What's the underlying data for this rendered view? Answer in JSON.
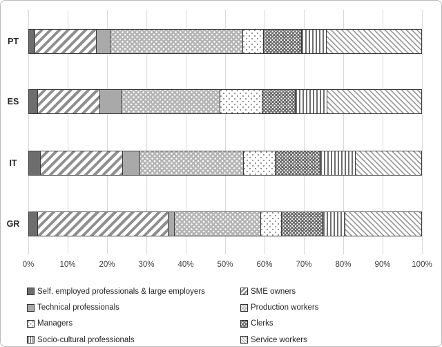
{
  "chart_data": {
    "type": "bar",
    "subtype": "horizontal-stacked-100pct",
    "title": "",
    "xlabel": "",
    "ylabel": "",
    "xlim": [
      0,
      100
    ],
    "grid": "vertical",
    "legend_position": "bottom",
    "legend_columns": 2,
    "categories": [
      "PT",
      "ES",
      "IT",
      "GR"
    ],
    "x_ticks": [
      "0%",
      "10%",
      "20%",
      "30%",
      "40%",
      "50%",
      "60%",
      "70%",
      "80%",
      "90%",
      "100%"
    ],
    "series": [
      {
        "name": "Self. employed professionals & large employers",
        "pattern": "solid-dark-gray",
        "css": "p-self",
        "values": [
          1.4,
          2.1,
          2.9,
          2.2
        ]
      },
      {
        "name": "SME owners",
        "pattern": "diagonal-up-stripes",
        "css": "p-sme",
        "values": [
          15.7,
          15.9,
          21.0,
          33.4
        ]
      },
      {
        "name": "Technical professionals",
        "pattern": "solid-medium-gray",
        "css": "p-tech",
        "values": [
          3.4,
          5.3,
          4.2,
          1.4
        ]
      },
      {
        "name": "Production workers",
        "pattern": "light-gray-white-dots",
        "css": "p-prod",
        "values": [
          34.1,
          25.4,
          26.6,
          22.1
        ]
      },
      {
        "name": "Managers",
        "pattern": "white-sparse-dots",
        "css": "p-mgr",
        "values": [
          5.2,
          10.7,
          8.1,
          5.3
        ]
      },
      {
        "name": "Clerks",
        "pattern": "dark-gray-white-dots",
        "css": "p-clerk",
        "values": [
          9.6,
          8.3,
          11.4,
          10.5
        ]
      },
      {
        "name": "Socio-cultural professionals",
        "pattern": "vertical-stripes",
        "css": "p-socio",
        "values": [
          6.1,
          8.1,
          8.8,
          5.5
        ]
      },
      {
        "name": "Service workers",
        "pattern": "diagonal-down-stripes",
        "css": "p-serv",
        "values": [
          24.5,
          24.2,
          17.0,
          19.6
        ]
      }
    ]
  },
  "layout_colors": {
    "gridline": "#d9d9d9",
    "axis_text": "#3d3d3d",
    "bar_border": "#3a3a3a",
    "frame_border": "#b9b9b9",
    "background": "#ffffff"
  }
}
